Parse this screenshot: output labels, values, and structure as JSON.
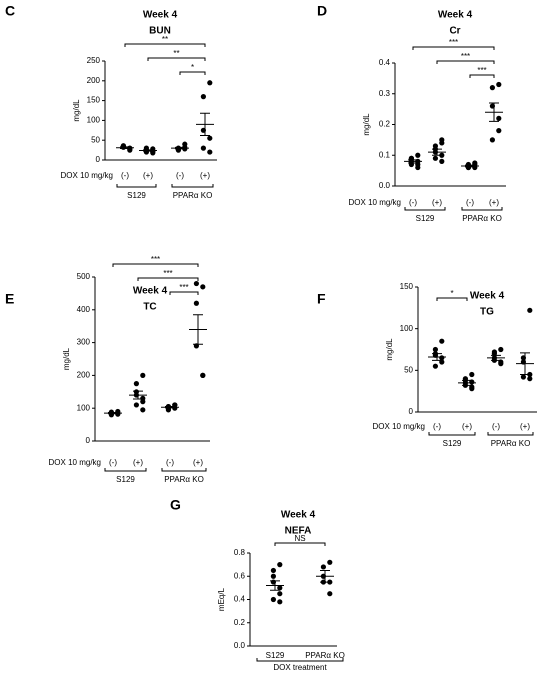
{
  "chart_data": [
    {
      "type": "strip",
      "panel": "C",
      "title": "Week 4",
      "subtitle": "BUN",
      "ylabel": "mg/dL",
      "ylim": [
        0,
        250
      ],
      "yticks": [
        0,
        50,
        100,
        150,
        200,
        250
      ],
      "categories": [
        "(-)",
        "(+)",
        "(-)",
        "(+)"
      ],
      "groups": [
        "S129",
        "PPARα KO"
      ],
      "row_label": "DOX 10 mg/kg",
      "points": [
        [
          30,
          32,
          35,
          28,
          25,
          33,
          36
        ],
        [
          22,
          25,
          20,
          28,
          18,
          24,
          30,
          21
        ],
        [
          28,
          30,
          25,
          40,
          32,
          27
        ],
        [
          195,
          160,
          75,
          20,
          55,
          30
        ]
      ],
      "means": [
        31,
        24,
        30,
        90
      ],
      "sems": [
        2,
        1.5,
        2,
        28
      ],
      "brackets": [
        {
          "from": 0,
          "to": 3,
          "label": "**"
        },
        {
          "from": 1,
          "to": 3,
          "label": "**"
        },
        {
          "from": 2,
          "to": 3,
          "label": "*"
        }
      ]
    },
    {
      "type": "strip",
      "panel": "D",
      "title": "Week 4",
      "subtitle": "Cr",
      "ylabel": "mg/dL",
      "ylim": [
        0,
        0.4
      ],
      "yticks": [
        {
          "value": 0,
          "label": "0.0"
        },
        0.1,
        0.2,
        0.3,
        0.4
      ],
      "categories": [
        "(-)",
        "(+)",
        "(-)",
        "(+)"
      ],
      "groups": [
        "S129",
        "PPARα KO"
      ],
      "row_label": "DOX 10 mg/kg",
      "points": [
        [
          0.08,
          0.09,
          0.07,
          0.06,
          0.1,
          0.08,
          0.09,
          0.07
        ],
        [
          0.15,
          0.13,
          0.12,
          0.1,
          0.08,
          0.09,
          0.11,
          0.14
        ],
        [
          0.07,
          0.06,
          0.07,
          0.06,
          0.075,
          0.065,
          0.06
        ],
        [
          0.33,
          0.32,
          0.26,
          0.22,
          0.18,
          0.15
        ]
      ],
      "means": [
        0.08,
        0.11,
        0.065,
        0.24
      ],
      "sems": [
        0.005,
        0.01,
        0.003,
        0.03
      ],
      "brackets": [
        {
          "from": 0,
          "to": 3,
          "label": "***"
        },
        {
          "from": 1,
          "to": 3,
          "label": "***"
        },
        {
          "from": 2,
          "to": 3,
          "label": "***"
        }
      ]
    },
    {
      "type": "strip",
      "panel": "E",
      "title": "Week 4",
      "subtitle": "TC",
      "ylabel": "mg/dL",
      "ylim": [
        0,
        500
      ],
      "yticks": [
        0,
        100,
        200,
        300,
        400,
        500
      ],
      "categories": [
        "(-)",
        "(+)",
        "(-)",
        "(+)"
      ],
      "groups": [
        "S129",
        "PPARα KO"
      ],
      "row_label": "DOX 10 mg/kg",
      "points": [
        [
          90,
          85,
          80,
          85,
          82,
          88,
          84
        ],
        [
          200,
          175,
          150,
          130,
          120,
          110,
          140,
          95
        ],
        [
          110,
          100,
          105,
          100,
          110,
          95,
          105
        ],
        [
          470,
          480,
          290,
          200,
          200,
          420
        ]
      ],
      "means": [
        85,
        140,
        103,
        340
      ],
      "sems": [
        2,
        12,
        2,
        45
      ],
      "brackets": [
        {
          "from": 0,
          "to": 3,
          "label": "***"
        },
        {
          "from": 1,
          "to": 3,
          "label": "***"
        },
        {
          "from": 2,
          "to": 3,
          "label": "***"
        }
      ]
    },
    {
      "type": "strip",
      "panel": "F",
      "title": "Week 4",
      "subtitle": "TG",
      "ylabel": "mg/dL",
      "ylim": [
        0,
        150
      ],
      "yticks": [
        0,
        50,
        100,
        150
      ],
      "categories": [
        "(-)",
        "(+)",
        "(-)",
        "(+)"
      ],
      "groups": [
        "S129",
        "PPARα KO"
      ],
      "row_label": "DOX 10 mg/kg",
      "points": [
        [
          85,
          75,
          70,
          65,
          60,
          68,
          55
        ],
        [
          45,
          40,
          35,
          30,
          28,
          32,
          38,
          36
        ],
        [
          75,
          72,
          65,
          60,
          58,
          70,
          62
        ],
        [
          122,
          65,
          42,
          40,
          45,
          60
        ]
      ],
      "means": [
        66,
        35,
        65,
        58
      ],
      "sems": [
        4,
        3,
        3,
        13
      ],
      "brackets": [
        {
          "from": 0,
          "to": 1,
          "label": "*"
        }
      ]
    },
    {
      "type": "strip",
      "panel": "G",
      "title": "Week 4",
      "subtitle": "NEFA",
      "ylabel": "mEq/L",
      "ylim": [
        0,
        0.8
      ],
      "yticks": [
        {
          "value": 0,
          "label": "0.0"
        },
        0.2,
        0.4,
        0.6,
        0.8
      ],
      "categories": [
        "S129",
        "PPARα KO"
      ],
      "xlabel": "DOX treatment",
      "points": [
        [
          0.7,
          0.65,
          0.6,
          0.5,
          0.45,
          0.4,
          0.55,
          0.38
        ],
        [
          0.72,
          0.68,
          0.6,
          0.55,
          0.45,
          0.55
        ]
      ],
      "means": [
        0.52,
        0.6
      ],
      "sems": [
        0.04,
        0.05
      ],
      "brackets": [
        {
          "from": 0,
          "to": 1,
          "label": "NS"
        }
      ]
    }
  ]
}
